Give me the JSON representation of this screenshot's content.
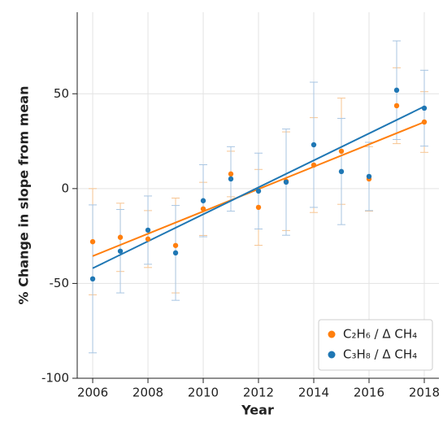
{
  "chart_data": {
    "type": "scatter",
    "x_label": "Year",
    "y_label": "% Change in slope from mean",
    "x": [
      2006,
      2007,
      2008,
      2009,
      2010,
      2011,
      2012,
      2013,
      2014,
      2015,
      2016,
      2017,
      2018
    ],
    "series": [
      {
        "name": "C₂H₆ / Δ CH₄",
        "color": "#ff7f0e",
        "error_color": "#f7c592",
        "values": [
          -28,
          -25.7,
          -26.6,
          -30,
          -10.7,
          7.7,
          -9.9,
          3.9,
          12.4,
          19.7,
          5.1,
          43.7,
          35.1
        ],
        "errors": [
          28,
          18,
          15,
          25,
          14,
          12,
          20,
          26,
          25,
          28,
          17,
          20,
          16
        ],
        "trend": [
          -35.6,
          35.1
        ]
      },
      {
        "name": "C₃H₈ / Δ CH₄",
        "color": "#1f77b4",
        "error_color": "#a8c5e2",
        "values": [
          -47.6,
          -33,
          -21.9,
          -33.9,
          -6.4,
          5.1,
          -1.3,
          3.4,
          23.1,
          9,
          6.4,
          51.9,
          42.4
        ],
        "errors": [
          39,
          22,
          18,
          25,
          19,
          17,
          20,
          28,
          33,
          28,
          18,
          26,
          20
        ],
        "trend": [
          -42,
          43.3
        ]
      }
    ],
    "xlim": [
      2005.44,
      2018.53
    ],
    "xticks": [
      2006,
      2008,
      2010,
      2012,
      2014,
      2016,
      2018
    ],
    "ylim": [
      -100,
      93
    ],
    "yticks": [
      -100,
      -50,
      0,
      50
    ],
    "grid": true,
    "legend": "lower right"
  }
}
